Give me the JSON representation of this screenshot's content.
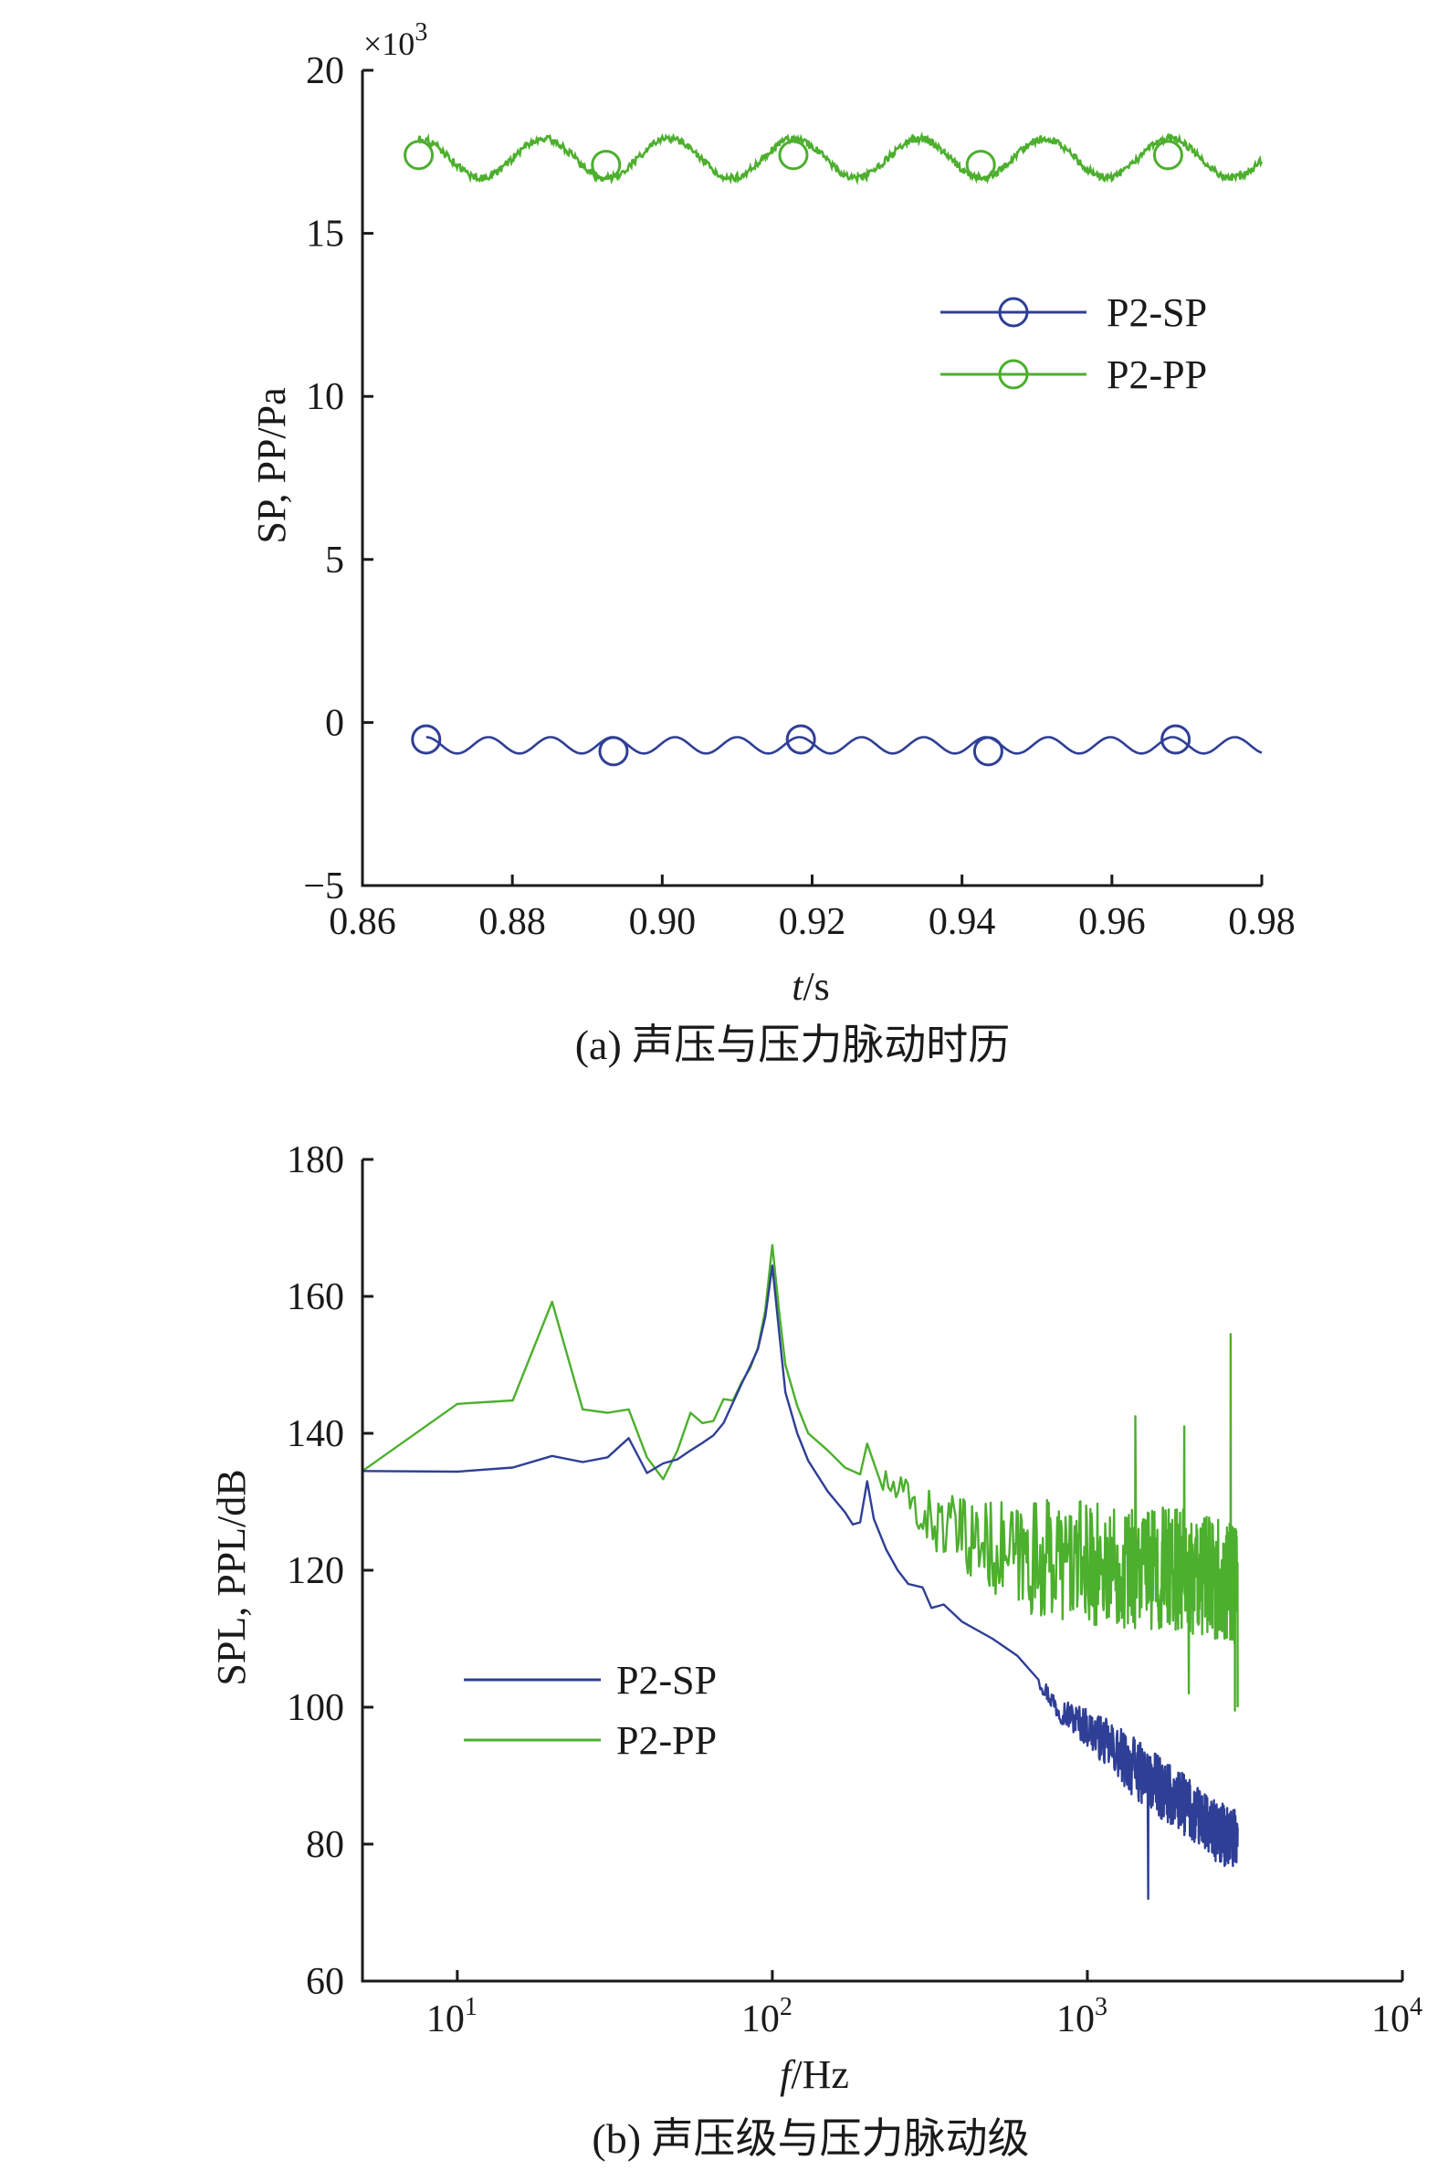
{
  "chart_data": [
    {
      "type": "line",
      "caption": "(a) 声压与压力脉动时历",
      "xlabel_italic": "t",
      "xlabel_unit": "/s",
      "ylabel": "SP, PP/Pa",
      "y_multiplier_prefix": "×10",
      "y_multiplier_exp": "3",
      "xlim": [
        0.86,
        0.98
      ],
      "ylim": [
        -5,
        20
      ],
      "x_ticks": [
        "0.86",
        "0.88",
        "0.90",
        "0.92",
        "0.94",
        "0.96",
        "0.98"
      ],
      "x_tick_values": [
        0.86,
        0.88,
        0.9,
        0.92,
        0.94,
        0.96,
        0.98
      ],
      "y_ticks": [
        "−5",
        "0",
        "5",
        "10",
        "15",
        "20"
      ],
      "y_tick_values": [
        -5,
        0,
        5,
        10,
        15,
        20
      ],
      "legend_position": "right-middle",
      "series": [
        {
          "name": "P2-SP",
          "color": "#2f3f96",
          "marker": "circle",
          "x_start": 0.8685,
          "x_end": 0.98,
          "y_min": -0.95,
          "y_max": -0.45,
          "period": 0.0083,
          "markers": [
            [
              0.8685,
              -0.52
            ],
            [
              0.8935,
              -0.88
            ],
            [
              0.9185,
              -0.52
            ],
            [
              0.9435,
              -0.88
            ],
            [
              0.9685,
              -0.52
            ]
          ]
        },
        {
          "name": "P2-PP",
          "color": "#4caf2d",
          "marker": "circle",
          "x_start": 0.8675,
          "x_end": 0.98,
          "y_min": 16.7,
          "y_max": 17.9,
          "period": 0.0167,
          "markers": [
            [
              0.8675,
              17.4
            ],
            [
              0.8925,
              17.1
            ],
            [
              0.9175,
              17.4
            ],
            [
              0.9425,
              17.1
            ],
            [
              0.9675,
              17.4
            ]
          ]
        }
      ]
    },
    {
      "type": "line",
      "caption": "(b) 声压级与压力脉动级",
      "xlabel_italic": "f",
      "xlabel_unit": "/Hz",
      "ylabel": "SPL, PPL/dB",
      "x_scale": "log",
      "xlim": [
        5,
        10000
      ],
      "ylim": [
        60,
        180
      ],
      "x_ticks": [
        {
          "base": "10",
          "exp": "1",
          "value": 10
        },
        {
          "base": "10",
          "exp": "2",
          "value": 100
        },
        {
          "base": "10",
          "exp": "3",
          "value": 1000
        },
        {
          "base": "10",
          "exp": "4",
          "value": 10000
        }
      ],
      "y_ticks": [
        "60",
        "80",
        "100",
        "120",
        "140",
        "160",
        "180"
      ],
      "y_tick_values": [
        60,
        80,
        100,
        120,
        140,
        160,
        180
      ],
      "legend_position": "left-lower",
      "series": [
        {
          "name": "P2-SP",
          "color": "#2f3f96",
          "points": [
            [
              5,
              134.5
            ],
            [
              10,
              134.4
            ],
            [
              15,
              135
            ],
            [
              20,
              136.7
            ],
            [
              25,
              135.8
            ],
            [
              30,
              136.5
            ],
            [
              35,
              139.3
            ],
            [
              40,
              134.2
            ],
            [
              45,
              135.6
            ],
            [
              50,
              136.2
            ],
            [
              55,
              137.5
            ],
            [
              60,
              138.6
            ],
            [
              65,
              139.7
            ],
            [
              70,
              141.5
            ],
            [
              75,
              144.5
            ],
            [
              80,
              147.3
            ],
            [
              85,
              149.8
            ],
            [
              90,
              152.3
            ],
            [
              95,
              157
            ],
            [
              100,
              164.5
            ],
            [
              105,
              155
            ],
            [
              110,
              146
            ],
            [
              120,
              140
            ],
            [
              130,
              136
            ],
            [
              150,
              131.5
            ],
            [
              170,
              128.5
            ],
            [
              180,
              126.7
            ],
            [
              190,
              127
            ],
            [
              200,
              133
            ],
            [
              210,
              127.5
            ],
            [
              230,
              123
            ],
            [
              250,
              120
            ],
            [
              270,
              118
            ],
            [
              300,
              117.5
            ],
            [
              320,
              114.5
            ],
            [
              350,
              115
            ],
            [
              400,
              112.5
            ],
            [
              500,
              110
            ],
            [
              600,
              107.5
            ],
            [
              700,
              104
            ],
            [
              800,
              100
            ],
            [
              1000,
              97
            ],
            [
              1200,
              94
            ],
            [
              1500,
              90
            ],
            [
              2000,
              86
            ],
            [
              2500,
              82
            ],
            [
              3000,
              80.5
            ]
          ],
          "noise_above_hz": 700,
          "noise_amplitude_db": 4.5,
          "extra_dips": [
            [
              1560,
              72
            ]
          ]
        },
        {
          "name": "P2-PP",
          "color": "#4caf2d",
          "points": [
            [
              5,
              134.5
            ],
            [
              10,
              144.3
            ],
            [
              15,
              144.8
            ],
            [
              20,
              159.2
            ],
            [
              25,
              143.5
            ],
            [
              30,
              143
            ],
            [
              35,
              143.5
            ],
            [
              40,
              136.5
            ],
            [
              45,
              133.3
            ],
            [
              50,
              137.5
            ],
            [
              55,
              143
            ],
            [
              60,
              141.5
            ],
            [
              65,
              141.8
            ],
            [
              70,
              145
            ],
            [
              75,
              144.8
            ],
            [
              80,
              147.5
            ],
            [
              85,
              149.5
            ],
            [
              90,
              152.5
            ],
            [
              95,
              158
            ],
            [
              100,
              167.5
            ],
            [
              105,
              158
            ],
            [
              110,
              150
            ],
            [
              120,
              144
            ],
            [
              130,
              140
            ],
            [
              150,
              137.5
            ],
            [
              170,
              135
            ],
            [
              190,
              134
            ],
            [
              200,
              138.5
            ],
            [
              220,
              133
            ],
            [
              250,
              131.5
            ],
            [
              300,
              128
            ],
            [
              400,
              125
            ],
            [
              600,
              122
            ],
            [
              1000,
              121
            ],
            [
              2000,
              120
            ],
            [
              3000,
              118
            ]
          ],
          "noise_above_hz": 220,
          "noise_amplitude_db": 9,
          "extra_spikes": [
            [
              2850,
              154.5
            ],
            [
              2030,
              141
            ],
            [
              1420,
              142.5
            ]
          ],
          "extra_dips": [
            [
              2940,
              99.5
            ],
            [
              2100,
              102
            ],
            [
              3000,
              100
            ]
          ]
        }
      ]
    }
  ]
}
